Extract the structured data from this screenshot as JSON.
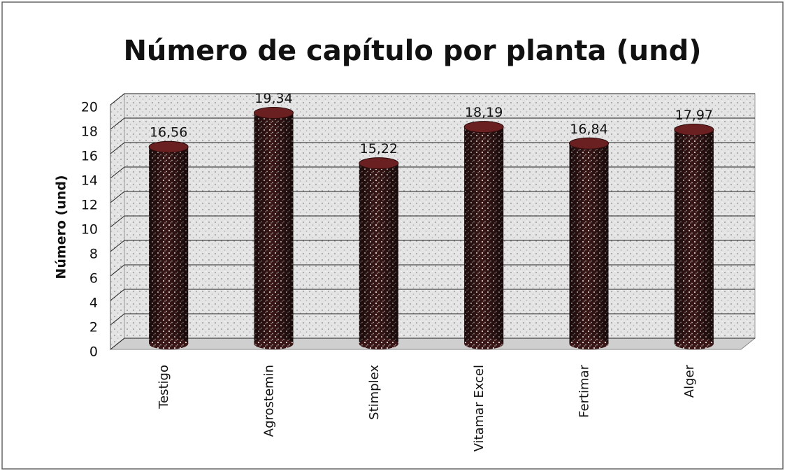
{
  "chart_data": {
    "type": "bar",
    "title": "Número de capítulo por planta (und)",
    "y_label": "Número (und)",
    "categories": [
      "Testigo",
      "Agrostemin",
      "Stimplex",
      "Vitamar Excel",
      "Fertimar",
      "Alger"
    ],
    "values": [
      16.56,
      19.34,
      15.22,
      18.19,
      16.84,
      17.97
    ],
    "value_labels": [
      "16,56",
      "19,34",
      "15,22",
      "18,19",
      "16,84",
      "17,97"
    ],
    "color": "#3a1616",
    "ylim": [
      0,
      20
    ],
    "yticks": [
      0,
      2,
      4,
      6,
      8,
      10,
      12,
      14,
      16,
      18,
      20
    ],
    "grid": true
  }
}
